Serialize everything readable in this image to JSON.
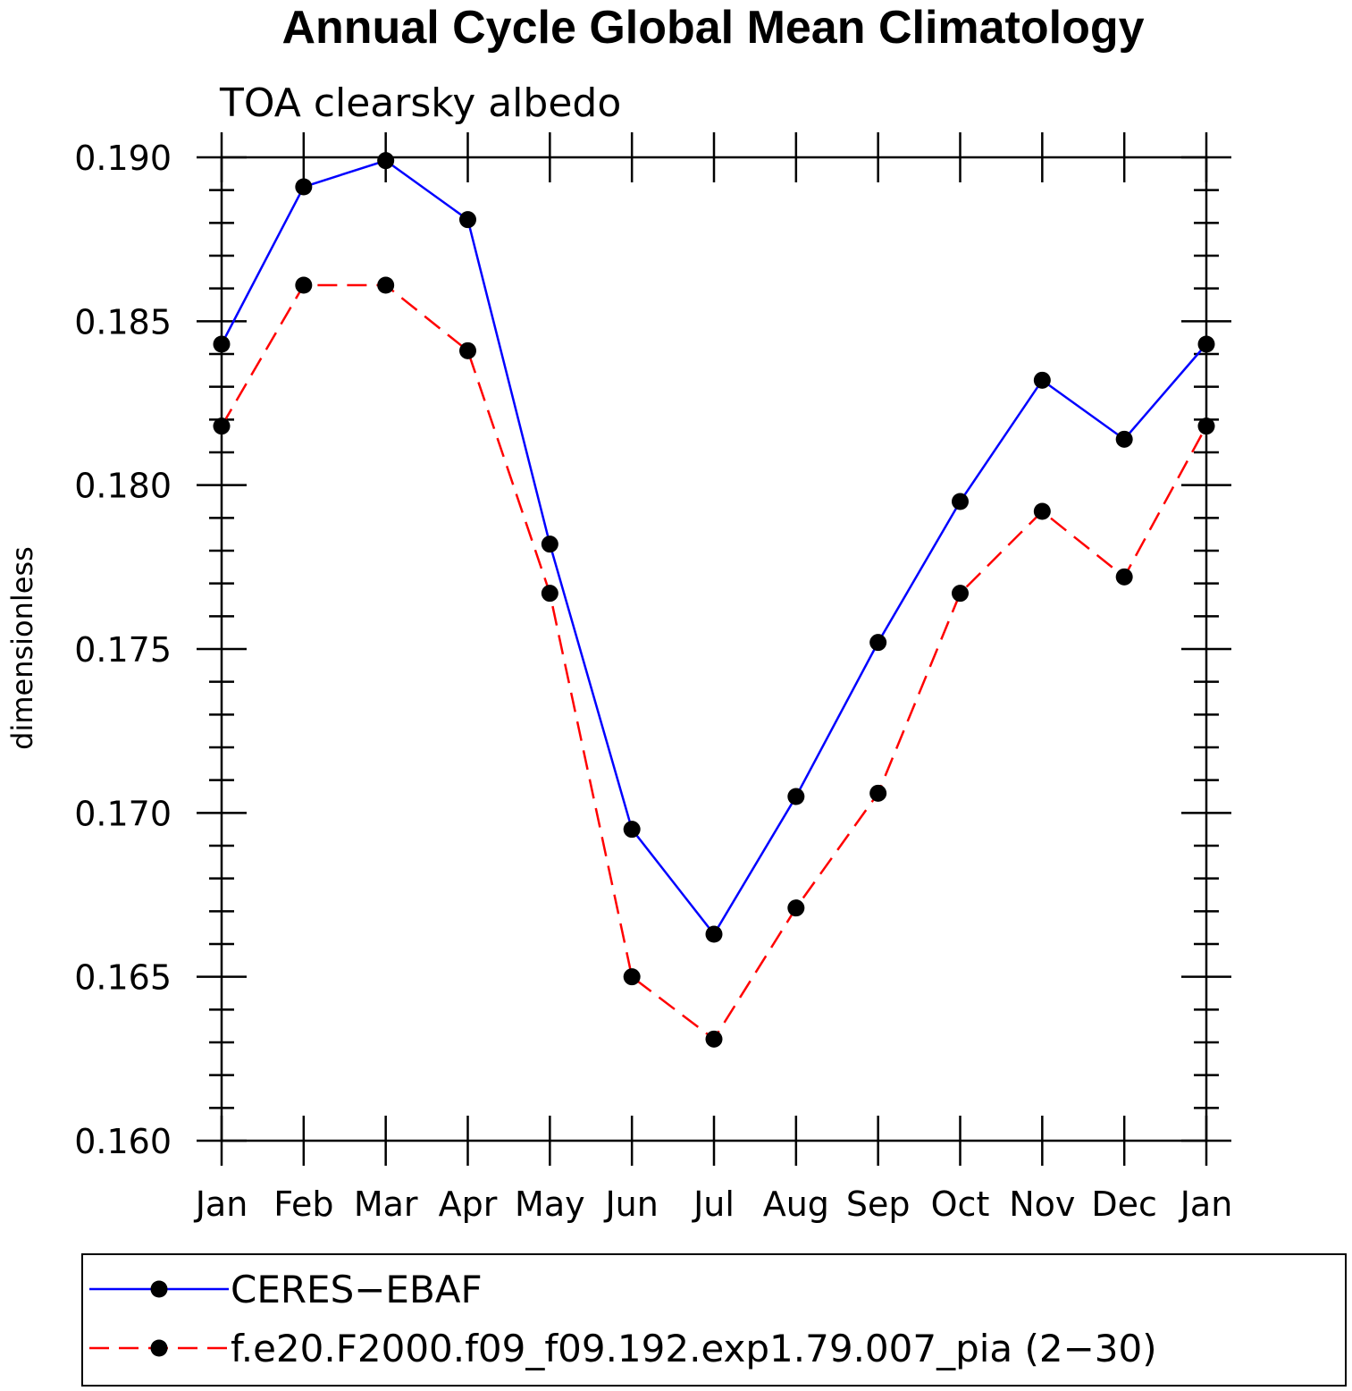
{
  "chart_data": {
    "type": "line",
    "title": "Annual Cycle Global Mean Climatology",
    "subtitle": "TOA clearsky albedo",
    "ylabel": "dimensionless",
    "xlabel": "",
    "categories": [
      "Jan",
      "Feb",
      "Mar",
      "Apr",
      "May",
      "Jun",
      "Jul",
      "Aug",
      "Sep",
      "Oct",
      "Nov",
      "Dec",
      "Jan"
    ],
    "ylim": [
      0.16,
      0.19
    ],
    "yticks": [
      "0.160",
      "0.165",
      "0.170",
      "0.175",
      "0.180",
      "0.185",
      "0.190"
    ],
    "ytick_values": [
      0.16,
      0.165,
      0.17,
      0.175,
      0.18,
      0.185,
      0.19
    ],
    "grid": false,
    "legend_position": "bottom",
    "series": [
      {
        "name": "CERES−EBAF",
        "color": "#0000ff",
        "dash": "solid",
        "marker": "filled-circle",
        "values": [
          0.1843,
          0.1891,
          0.1899,
          0.1881,
          0.1782,
          0.1695,
          0.1663,
          0.1705,
          0.1752,
          0.1795,
          0.1832,
          0.1814,
          0.1843
        ]
      },
      {
        "name": "f.e20.F2000.f09_f09.192.exp1.79.007_pia (2−30)",
        "color": "#ff0000",
        "dash": "dashed",
        "marker": "filled-circle",
        "values": [
          0.1818,
          0.1861,
          0.1861,
          0.1841,
          0.1767,
          0.165,
          0.1631,
          0.1671,
          0.1706,
          0.1767,
          0.1792,
          0.1772,
          0.1818
        ]
      }
    ]
  }
}
